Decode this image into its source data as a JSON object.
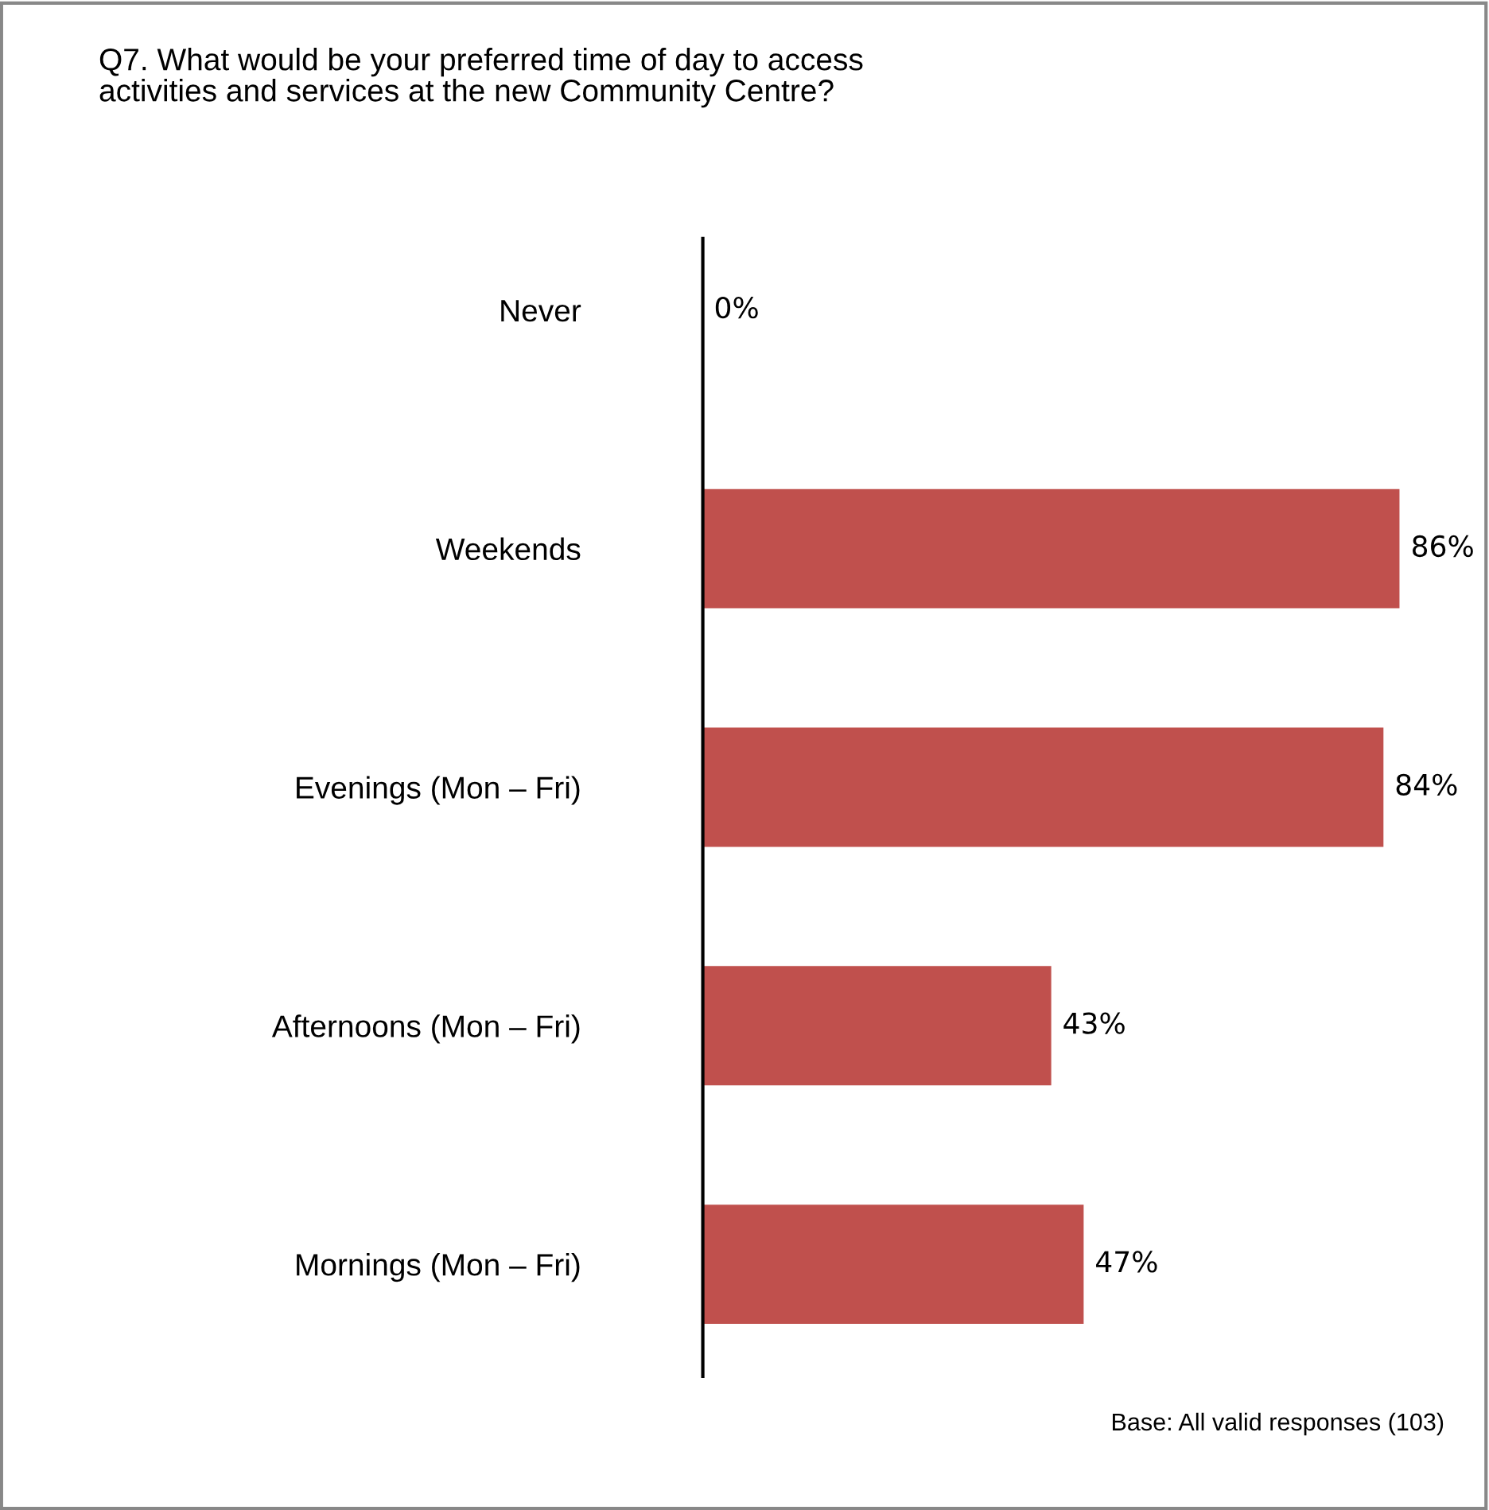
{
  "chart_data": {
    "type": "bar",
    "orientation": "horizontal",
    "title": "Q7. What would be your preferred time of day to access\nactivities and services at the new Community Centre?",
    "categories": [
      "Never",
      "Weekends",
      "Evenings (Mon – Fri)",
      "Afternoons (Mon – Fri)",
      "Mornings (Mon – Fri)"
    ],
    "values": [
      0,
      86,
      84,
      43,
      47
    ],
    "value_labels": [
      "0%",
      "86%",
      "84%",
      "43%",
      "47%"
    ],
    "color": "#c0504d",
    "tick_labels": "y",
    "grid": false,
    "legend": false,
    "annotations": [
      "Base: All valid responses (103)"
    ]
  }
}
